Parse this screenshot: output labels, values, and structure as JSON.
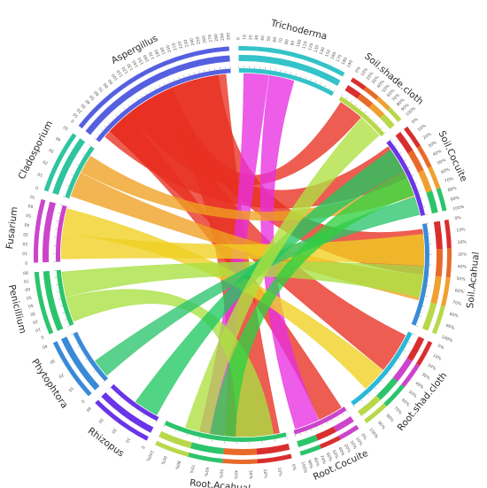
{
  "chart_data": {
    "type": "chord",
    "title": "",
    "sectors": [
      {
        "name": "Trichoderma",
        "value": 190,
        "color": "#33c3c8",
        "kind": "fungus"
      },
      {
        "name": "Soil.shade.cloth",
        "value": 0,
        "color": "#b8d84a",
        "kind": "sample",
        "ring_colors": [
          "#d92e2e",
          "#e86a2a",
          "#f0a030",
          "#b8d84a"
        ]
      },
      {
        "name": "Soil.Cocuite",
        "value": 160,
        "color": "#6a35e8",
        "kind": "sample",
        "ring_colors": [
          "#d92e2e",
          "#e86a2a",
          "#f0a030",
          "#2cc46b"
        ]
      },
      {
        "name": "Soil.Acahual",
        "value": 200,
        "color": "#3a8ad8",
        "kind": "sample",
        "ring_colors": [
          "#d92e2e",
          "#e86a2a",
          "#f0a030",
          "#b8d84a"
        ]
      },
      {
        "name": "Root.shad.cloth",
        "value": 180,
        "color": "#29b8d8",
        "kind": "sample",
        "ring_colors": [
          "#d92e2e",
          "#cc44cc",
          "#2cc46b",
          "#b8d84a"
        ]
      },
      {
        "name": "Root.Cocuite",
        "value": 0,
        "color": "#cc44cc",
        "kind": "sample",
        "ring_colors": [
          "#cc44cc",
          "#d92e2e",
          "#2cc46b"
        ]
      },
      {
        "name": "Root.Acahual",
        "value": 240,
        "color": "#2cc46b",
        "kind": "sample",
        "ring_colors": [
          "#d92e2e",
          "#e86a2a",
          "#2cc46b",
          "#b8d84a"
        ]
      },
      {
        "name": "Rhizopus",
        "value": 40,
        "color": "#6a35e8",
        "kind": "fungus"
      },
      {
        "name": "Phytophtora",
        "value": 40,
        "color": "#3a8ad8",
        "kind": "fungus"
      },
      {
        "name": "Penicillium",
        "value": 80,
        "color": "#2cc46b",
        "kind": "fungus"
      },
      {
        "name": "Fusarium",
        "value": 70,
        "color": "#cc44cc",
        "kind": "fungus"
      },
      {
        "name": "Cladosporium",
        "value": 50,
        "color": "#2ec4a0",
        "kind": "fungus"
      },
      {
        "name": "Aspergillus",
        "value": 300,
        "color": "#5560e0",
        "kind": "fungus"
      }
    ],
    "links": [
      {
        "from": "Aspergillus",
        "to": "Soil.Cocuite",
        "value": 60,
        "color": "#e83020"
      },
      {
        "from": "Aspergillus",
        "to": "Soil.Acahual",
        "value": 50,
        "color": "#e83020"
      },
      {
        "from": "Aspergillus",
        "to": "Root.shad.cloth",
        "value": 50,
        "color": "#e83020"
      },
      {
        "from": "Aspergillus",
        "to": "Root.Acahual",
        "value": 60,
        "color": "#e83020"
      },
      {
        "from": "Aspergillus",
        "to": "Root.Cocuite",
        "value": 20,
        "color": "#e83020"
      },
      {
        "from": "Aspergillus",
        "to": "Soil.shade.cloth",
        "value": 40,
        "color": "#e83020"
      },
      {
        "from": "Trichoderma",
        "to": "Root.Acahual",
        "value": 20,
        "color": "#e830e0"
      },
      {
        "from": "Trichoderma",
        "to": "Root.Cocuite",
        "value": 20,
        "color": "#e830e0"
      },
      {
        "from": "Cladosporium",
        "to": "Soil.Acahual",
        "value": 20,
        "color": "#f0a020"
      },
      {
        "from": "Cladosporium",
        "to": "Soil.Cocuite",
        "value": 15,
        "color": "#f0a020"
      },
      {
        "from": "Fusarium",
        "to": "Soil.Acahual",
        "value": 25,
        "color": "#f0d020"
      },
      {
        "from": "Fusarium",
        "to": "Root.shad.cloth",
        "value": 20,
        "color": "#f0d020"
      },
      {
        "from": "Penicillium",
        "to": "Root.Acahual",
        "value": 30,
        "color": "#a8e040"
      },
      {
        "from": "Penicillium",
        "to": "Soil.Acahual",
        "value": 25,
        "color": "#a8e040"
      },
      {
        "from": "Phytophtora",
        "to": "Soil.Cocuite",
        "value": 15,
        "color": "#2cc46b"
      },
      {
        "from": "Rhizopus",
        "to": "Soil.Cocuite",
        "value": 20,
        "color": "#20c860"
      },
      {
        "from": "Root.Acahual",
        "to": "Soil.Cocuite",
        "value": 20,
        "color": "#30d040"
      },
      {
        "from": "Root.Acahual",
        "to": "Soil.shade.cloth",
        "value": 20,
        "color": "#b0e040"
      }
    ],
    "tick_labels_fungus": [
      "0",
      "10",
      "20",
      "30",
      "40",
      "50",
      "60",
      "70",
      "80",
      "90",
      "100",
      "110",
      "120",
      "130",
      "140",
      "150",
      "160",
      "170",
      "180",
      "190",
      "200",
      "210",
      "220",
      "230",
      "240",
      "250",
      "260",
      "270",
      "280",
      "290",
      "300"
    ],
    "tick_labels_percent": [
      "0%",
      "10%",
      "20%",
      "30%",
      "40%",
      "50%",
      "60%",
      "70%",
      "80%",
      "90%",
      "100%"
    ]
  }
}
